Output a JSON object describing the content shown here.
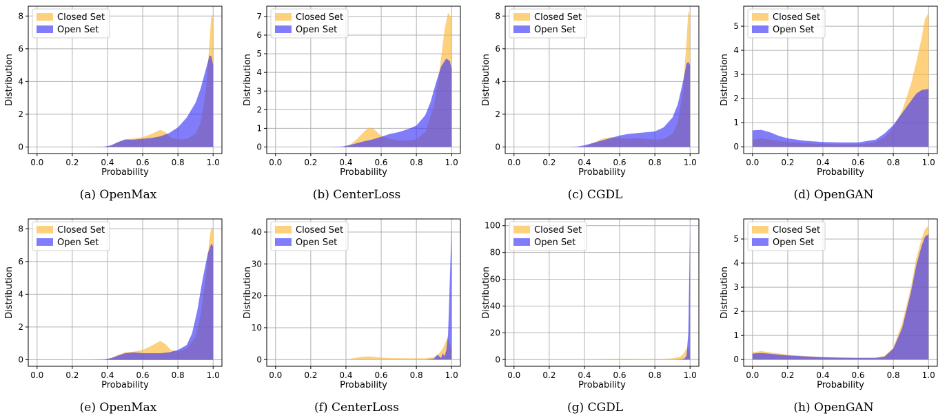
{
  "colors": {
    "closed_set": "#fcb837",
    "open_set": "#3d36f7",
    "grid": "#b0b0b0"
  },
  "chart_data": [
    {
      "type": "area",
      "caption": "(a) OpenMax",
      "xlabel": "Probability",
      "ylabel": "Distribution",
      "xlim": [
        -0.05,
        1.05
      ],
      "ylim": [
        -0.4,
        8.6
      ],
      "xticks": [
        0.0,
        0.2,
        0.4,
        0.6,
        0.8,
        1.0
      ],
      "yticks": [
        0,
        2,
        4,
        6,
        8
      ],
      "grid": true,
      "legend": "upper left",
      "series": [
        {
          "name": "Closed Set",
          "x": [
            0,
            0.3,
            0.38,
            0.42,
            0.46,
            0.5,
            0.55,
            0.6,
            0.65,
            0.7,
            0.73,
            0.76,
            0.8,
            0.85,
            0.9,
            0.93,
            0.96,
            0.98,
            0.99,
            1.0
          ],
          "y": [
            0,
            0,
            0.02,
            0.1,
            0.3,
            0.48,
            0.52,
            0.6,
            0.8,
            1.05,
            0.9,
            0.55,
            0.45,
            0.5,
            0.8,
            1.5,
            3.5,
            6.5,
            8.1,
            7.8
          ]
        },
        {
          "name": "Open Set",
          "x": [
            0,
            0.3,
            0.38,
            0.42,
            0.46,
            0.5,
            0.55,
            0.6,
            0.65,
            0.7,
            0.75,
            0.8,
            0.85,
            0.9,
            0.93,
            0.96,
            0.98,
            0.99,
            1.0
          ],
          "y": [
            0,
            0,
            0.02,
            0.1,
            0.3,
            0.45,
            0.45,
            0.5,
            0.55,
            0.65,
            0.85,
            1.2,
            1.8,
            2.7,
            3.6,
            4.8,
            5.6,
            5.55,
            5.0
          ]
        }
      ]
    },
    {
      "type": "area",
      "caption": "(b) CenterLoss",
      "xlabel": "Probability",
      "ylabel": "Distribution",
      "xlim": [
        -0.05,
        1.05
      ],
      "ylim": [
        -0.35,
        7.55
      ],
      "xticks": [
        0.0,
        0.2,
        0.4,
        0.6,
        0.8,
        1.0
      ],
      "yticks": [
        0,
        1,
        2,
        3,
        4,
        5,
        6,
        7
      ],
      "grid": true,
      "legend": "upper left",
      "series": [
        {
          "name": "Closed Set",
          "x": [
            0,
            0.3,
            0.38,
            0.42,
            0.46,
            0.5,
            0.53,
            0.56,
            0.6,
            0.65,
            0.7,
            0.75,
            0.8,
            0.85,
            0.9,
            0.93,
            0.96,
            0.98,
            1.0
          ],
          "y": [
            0,
            0,
            0.02,
            0.1,
            0.4,
            0.8,
            1.05,
            0.95,
            0.6,
            0.45,
            0.35,
            0.35,
            0.4,
            0.8,
            2.2,
            4.0,
            6.3,
            7.2,
            6.9
          ]
        },
        {
          "name": "Open Set",
          "x": [
            0,
            0.3,
            0.38,
            0.42,
            0.46,
            0.5,
            0.55,
            0.6,
            0.65,
            0.7,
            0.75,
            0.8,
            0.85,
            0.88,
            0.91,
            0.94,
            0.97,
            0.99,
            1.0
          ],
          "y": [
            0,
            0,
            0.03,
            0.1,
            0.2,
            0.3,
            0.4,
            0.55,
            0.7,
            0.8,
            0.95,
            1.15,
            1.7,
            2.4,
            3.4,
            4.3,
            4.75,
            4.6,
            4.2
          ]
        }
      ]
    },
    {
      "type": "area",
      "caption": "(c) CGDL",
      "xlabel": "Probability",
      "ylabel": "Distribution",
      "xlim": [
        -0.05,
        1.05
      ],
      "ylim": [
        -0.4,
        8.6
      ],
      "xticks": [
        0.0,
        0.2,
        0.4,
        0.6,
        0.8,
        1.0
      ],
      "yticks": [
        0,
        2,
        4,
        6,
        8
      ],
      "grid": true,
      "legend": "upper left",
      "series": [
        {
          "name": "Closed Set",
          "x": [
            0,
            0.3,
            0.38,
            0.42,
            0.46,
            0.5,
            0.55,
            0.6,
            0.65,
            0.7,
            0.75,
            0.8,
            0.85,
            0.9,
            0.93,
            0.96,
            0.98,
            0.99,
            1.0
          ],
          "y": [
            0,
            0,
            0.02,
            0.1,
            0.3,
            0.5,
            0.6,
            0.55,
            0.5,
            0.55,
            0.5,
            0.45,
            0.5,
            0.8,
            1.5,
            3.5,
            6.5,
            8.3,
            8.0
          ]
        },
        {
          "name": "Open Set",
          "x": [
            0,
            0.3,
            0.36,
            0.4,
            0.45,
            0.5,
            0.55,
            0.6,
            0.65,
            0.7,
            0.75,
            0.8,
            0.85,
            0.9,
            0.93,
            0.96,
            0.98,
            0.99,
            1.0
          ],
          "y": [
            0,
            0,
            0.03,
            0.1,
            0.25,
            0.4,
            0.55,
            0.7,
            0.8,
            0.85,
            0.9,
            0.95,
            1.2,
            1.8,
            2.6,
            4.0,
            5.1,
            5.2,
            5.0
          ]
        }
      ]
    },
    {
      "type": "area",
      "caption": "(d) OpenGAN",
      "xlabel": "Probability",
      "ylabel": "Distribution",
      "xlim": [
        -0.05,
        1.05
      ],
      "ylim": [
        -0.28,
        5.83
      ],
      "xticks": [
        0.0,
        0.2,
        0.4,
        0.6,
        0.8,
        1.0
      ],
      "yticks": [
        0,
        1,
        2,
        3,
        4,
        5
      ],
      "grid": true,
      "legend": "upper left",
      "series": [
        {
          "name": "Closed Set",
          "x": [
            0,
            0.05,
            0.1,
            0.2,
            0.3,
            0.4,
            0.5,
            0.6,
            0.7,
            0.75,
            0.8,
            0.85,
            0.9,
            0.93,
            0.96,
            0.98,
            1.0
          ],
          "y": [
            0.3,
            0.35,
            0.3,
            0.2,
            0.15,
            0.12,
            0.1,
            0.1,
            0.2,
            0.4,
            0.8,
            1.5,
            2.6,
            3.5,
            4.5,
            5.3,
            5.55
          ]
        },
        {
          "name": "Open Set",
          "x": [
            0,
            0.05,
            0.1,
            0.15,
            0.2,
            0.3,
            0.4,
            0.5,
            0.6,
            0.7,
            0.75,
            0.8,
            0.85,
            0.9,
            0.93,
            0.96,
            1.0
          ],
          "y": [
            0.68,
            0.7,
            0.6,
            0.45,
            0.35,
            0.25,
            0.2,
            0.18,
            0.18,
            0.3,
            0.55,
            0.9,
            1.4,
            1.9,
            2.2,
            2.35,
            2.4
          ]
        }
      ]
    },
    {
      "type": "area",
      "caption": "(e) OpenMax",
      "xlabel": "Probability",
      "ylabel": "Distribution",
      "xlim": [
        -0.05,
        1.05
      ],
      "ylim": [
        -0.4,
        8.6
      ],
      "xticks": [
        0.0,
        0.2,
        0.4,
        0.6,
        0.8,
        1.0
      ],
      "yticks": [
        0,
        2,
        4,
        6,
        8
      ],
      "grid": true,
      "legend": "upper left",
      "series": [
        {
          "name": "Closed Set",
          "x": [
            0,
            0.3,
            0.38,
            0.42,
            0.46,
            0.5,
            0.55,
            0.6,
            0.65,
            0.7,
            0.73,
            0.76,
            0.8,
            0.85,
            0.9,
            0.93,
            0.96,
            0.98,
            0.99,
            1.0
          ],
          "y": [
            0,
            0,
            0.02,
            0.1,
            0.3,
            0.45,
            0.5,
            0.6,
            0.85,
            1.15,
            0.95,
            0.6,
            0.5,
            0.7,
            1.4,
            2.8,
            5.2,
            7.5,
            8.1,
            7.9
          ]
        },
        {
          "name": "Open Set",
          "x": [
            0,
            0.3,
            0.38,
            0.42,
            0.46,
            0.5,
            0.55,
            0.6,
            0.65,
            0.7,
            0.75,
            0.8,
            0.85,
            0.88,
            0.91,
            0.94,
            0.97,
            0.99,
            1.0
          ],
          "y": [
            0,
            0,
            0.02,
            0.1,
            0.25,
            0.4,
            0.45,
            0.4,
            0.4,
            0.4,
            0.45,
            0.6,
            0.9,
            1.6,
            3.0,
            4.9,
            6.5,
            7.1,
            6.9
          ]
        }
      ]
    },
    {
      "type": "area",
      "caption": "(f) CenterLoss",
      "xlabel": "Probability",
      "ylabel": "Distribution",
      "xlim": [
        -0.05,
        1.05
      ],
      "ylim": [
        -2.1,
        44.1
      ],
      "xticks": [
        0.0,
        0.2,
        0.4,
        0.6,
        0.8,
        1.0
      ],
      "yticks": [
        0,
        10,
        20,
        30,
        40
      ],
      "grid": true,
      "legend": "upper left",
      "series": [
        {
          "name": "Closed Set",
          "x": [
            0,
            0.35,
            0.42,
            0.48,
            0.53,
            0.58,
            0.65,
            0.75,
            0.85,
            0.9,
            0.93,
            0.95,
            0.97,
            0.98,
            0.99,
            1.0
          ],
          "y": [
            0,
            0,
            0.2,
            0.8,
            1.0,
            0.7,
            0.5,
            0.4,
            0.4,
            0.8,
            2.0,
            3.5,
            6.0,
            7.0,
            5.0,
            3.0
          ]
        },
        {
          "name": "Open Set",
          "x": [
            0,
            0.85,
            0.9,
            0.92,
            0.94,
            0.95,
            0.96,
            0.97,
            0.98,
            0.99,
            1.0
          ],
          "y": [
            0,
            0,
            0.3,
            1.5,
            0.5,
            2.0,
            1.0,
            3.0,
            8.0,
            25,
            42
          ]
        }
      ]
    },
    {
      "type": "area",
      "caption": "(g) CGDL",
      "xlabel": "Probability",
      "ylabel": "Distribution",
      "xlim": [
        -0.05,
        1.05
      ],
      "ylim": [
        -5,
        105
      ],
      "xticks": [
        0.0,
        0.2,
        0.4,
        0.6,
        0.8,
        1.0
      ],
      "yticks": [
        0,
        20,
        40,
        60,
        80,
        100
      ],
      "grid": true,
      "legend": "upper left",
      "series": [
        {
          "name": "Closed Set",
          "x": [
            0,
            0.35,
            0.45,
            0.55,
            0.65,
            0.75,
            0.85,
            0.9,
            0.94,
            0.96,
            0.98,
            0.99,
            1.0
          ],
          "y": [
            0,
            0,
            0.3,
            0.6,
            0.6,
            0.5,
            0.6,
            1.0,
            2.0,
            4.0,
            8.0,
            9.0,
            4.0
          ]
        },
        {
          "name": "Open Set",
          "x": [
            0,
            0.9,
            0.95,
            0.97,
            0.98,
            0.99,
            0.995,
            1.0
          ],
          "y": [
            0,
            0,
            0.3,
            1.0,
            3.0,
            20,
            60,
            100
          ]
        }
      ]
    },
    {
      "type": "area",
      "caption": "(h) OpenGAN",
      "xlabel": "Probability",
      "ylabel": "Distribution",
      "xlim": [
        -0.05,
        1.05
      ],
      "ylim": [
        -0.28,
        5.83
      ],
      "xticks": [
        0.0,
        0.2,
        0.4,
        0.6,
        0.8,
        1.0
      ],
      "yticks": [
        0,
        1,
        2,
        3,
        4,
        5
      ],
      "grid": true,
      "legend": "upper left",
      "series": [
        {
          "name": "Closed Set",
          "x": [
            0,
            0.05,
            0.1,
            0.2,
            0.3,
            0.4,
            0.5,
            0.6,
            0.7,
            0.75,
            0.8,
            0.85,
            0.9,
            0.93,
            0.96,
            0.98,
            1.0
          ],
          "y": [
            0.3,
            0.35,
            0.3,
            0.2,
            0.15,
            0.1,
            0.08,
            0.07,
            0.08,
            0.15,
            0.5,
            1.5,
            3.0,
            4.2,
            5.0,
            5.4,
            5.55
          ]
        },
        {
          "name": "Open Set",
          "x": [
            0,
            0.05,
            0.1,
            0.2,
            0.3,
            0.4,
            0.5,
            0.6,
            0.7,
            0.75,
            0.8,
            0.85,
            0.9,
            0.93,
            0.96,
            0.98,
            1.0
          ],
          "y": [
            0.25,
            0.27,
            0.24,
            0.17,
            0.13,
            0.1,
            0.08,
            0.07,
            0.07,
            0.12,
            0.45,
            1.3,
            2.8,
            3.9,
            4.7,
            5.1,
            5.2
          ]
        }
      ]
    }
  ]
}
